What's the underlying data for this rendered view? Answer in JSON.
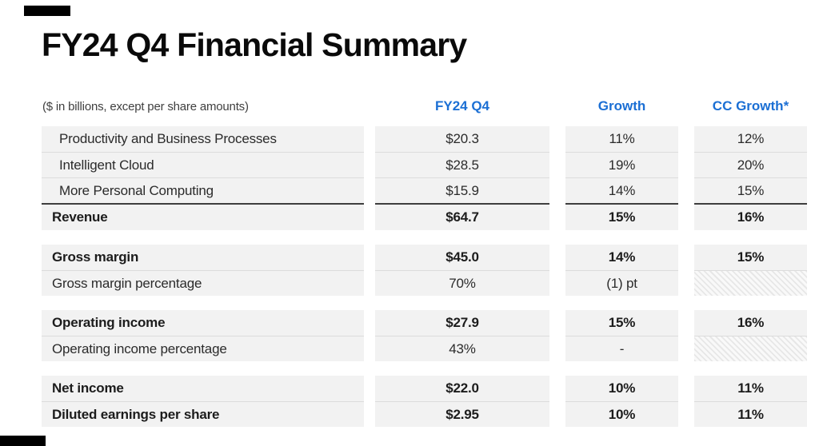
{
  "page": {
    "title": "FY24 Q4 Financial Summary",
    "note": "($ in billions, except per share amounts)"
  },
  "table": {
    "columns": [
      "FY24 Q4",
      "Growth",
      "CC Growth*"
    ],
    "groups": [
      {
        "rows": [
          {
            "label": "Productivity and Business Processes",
            "values": [
              "$20.3",
              "11%",
              "12%"
            ],
            "style": "segment"
          },
          {
            "label": "Intelligent Cloud",
            "values": [
              "$28.5",
              "19%",
              "20%"
            ],
            "style": "segment"
          },
          {
            "label": "More Personal Computing",
            "values": [
              "$15.9",
              "14%",
              "15%"
            ],
            "style": "segment"
          },
          {
            "label": "Revenue",
            "values": [
              "$64.7",
              "15%",
              "16%"
            ],
            "style": "total",
            "top_border": "dark"
          }
        ]
      },
      {
        "rows": [
          {
            "label": "Gross margin",
            "values": [
              "$45.0",
              "14%",
              "15%"
            ],
            "style": "total"
          },
          {
            "label": "Gross margin percentage",
            "values": [
              "70%",
              "(1) pt",
              null
            ],
            "style": "detail",
            "hatched_columns": [
              2
            ]
          }
        ]
      },
      {
        "rows": [
          {
            "label": "Operating income",
            "values": [
              "$27.9",
              "15%",
              "16%"
            ],
            "style": "total"
          },
          {
            "label": "Operating income percentage",
            "values": [
              "43%",
              "-",
              null
            ],
            "style": "detail",
            "hatched_columns": [
              2
            ]
          }
        ]
      },
      {
        "rows": [
          {
            "label": "Net income",
            "values": [
              "$22.0",
              "10%",
              "11%"
            ],
            "style": "total"
          },
          {
            "label": "Diluted earnings per share",
            "values": [
              "$2.95",
              "10%",
              "11%"
            ],
            "style": "total"
          }
        ]
      }
    ]
  },
  "colors": {
    "accent_blue": "#1B6FD4",
    "row_background": "#F2F2F2",
    "dark_border": "#3E3E3E",
    "row_separator": "#DCDCDC",
    "accent_bar_black": "#000000"
  }
}
